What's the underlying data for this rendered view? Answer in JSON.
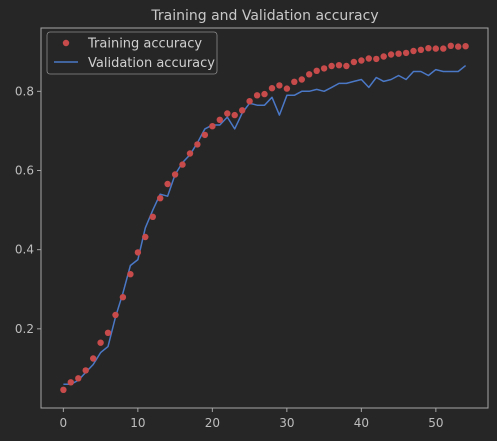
{
  "chart_data": {
    "type": "line",
    "title": "Training and Validation accuracy",
    "xlabel": "",
    "ylabel": "",
    "xlim": [
      -3,
      57
    ],
    "ylim": [
      0.0,
      0.96
    ],
    "x_ticks": [
      0,
      10,
      20,
      30,
      40,
      50
    ],
    "y_ticks": [
      0.2,
      0.4,
      0.6,
      0.8
    ],
    "grid": false,
    "legend_position": "top-left",
    "x": [
      0,
      1,
      2,
      3,
      4,
      5,
      6,
      7,
      8,
      9,
      10,
      11,
      12,
      13,
      14,
      15,
      16,
      17,
      18,
      19,
      20,
      21,
      22,
      23,
      24,
      25,
      26,
      27,
      28,
      29,
      30,
      31,
      32,
      33,
      34,
      35,
      36,
      37,
      38,
      39,
      40,
      41,
      42,
      43,
      44,
      45,
      46,
      47,
      48,
      49,
      50,
      51,
      52,
      53,
      54
    ],
    "series": [
      {
        "name": "Training accuracy",
        "style": "dots",
        "color": "#c84b4b",
        "values": [
          0.046,
          0.065,
          0.075,
          0.095,
          0.125,
          0.165,
          0.19,
          0.235,
          0.28,
          0.338,
          0.393,
          0.432,
          0.483,
          0.53,
          0.566,
          0.59,
          0.615,
          0.643,
          0.666,
          0.69,
          0.712,
          0.728,
          0.744,
          0.74,
          0.752,
          0.775,
          0.79,
          0.793,
          0.808,
          0.815,
          0.807,
          0.824,
          0.83,
          0.843,
          0.852,
          0.858,
          0.864,
          0.866,
          0.864,
          0.874,
          0.878,
          0.883,
          0.882,
          0.888,
          0.893,
          0.895,
          0.897,
          0.902,
          0.905,
          0.909,
          0.908,
          0.908,
          0.915,
          0.913,
          0.914
        ]
      },
      {
        "name": "Validation accuracy",
        "style": "line",
        "color": "#4b78c6",
        "values": [
          0.06,
          0.06,
          0.07,
          0.09,
          0.11,
          0.14,
          0.155,
          0.23,
          0.29,
          0.36,
          0.375,
          0.455,
          0.5,
          0.54,
          0.535,
          0.59,
          0.62,
          0.64,
          0.67,
          0.705,
          0.715,
          0.715,
          0.735,
          0.705,
          0.745,
          0.77,
          0.765,
          0.765,
          0.785,
          0.74,
          0.79,
          0.79,
          0.8,
          0.8,
          0.805,
          0.8,
          0.81,
          0.82,
          0.82,
          0.825,
          0.83,
          0.81,
          0.835,
          0.825,
          0.83,
          0.84,
          0.83,
          0.85,
          0.85,
          0.84,
          0.855,
          0.85,
          0.85,
          0.85,
          0.865
        ]
      }
    ]
  }
}
